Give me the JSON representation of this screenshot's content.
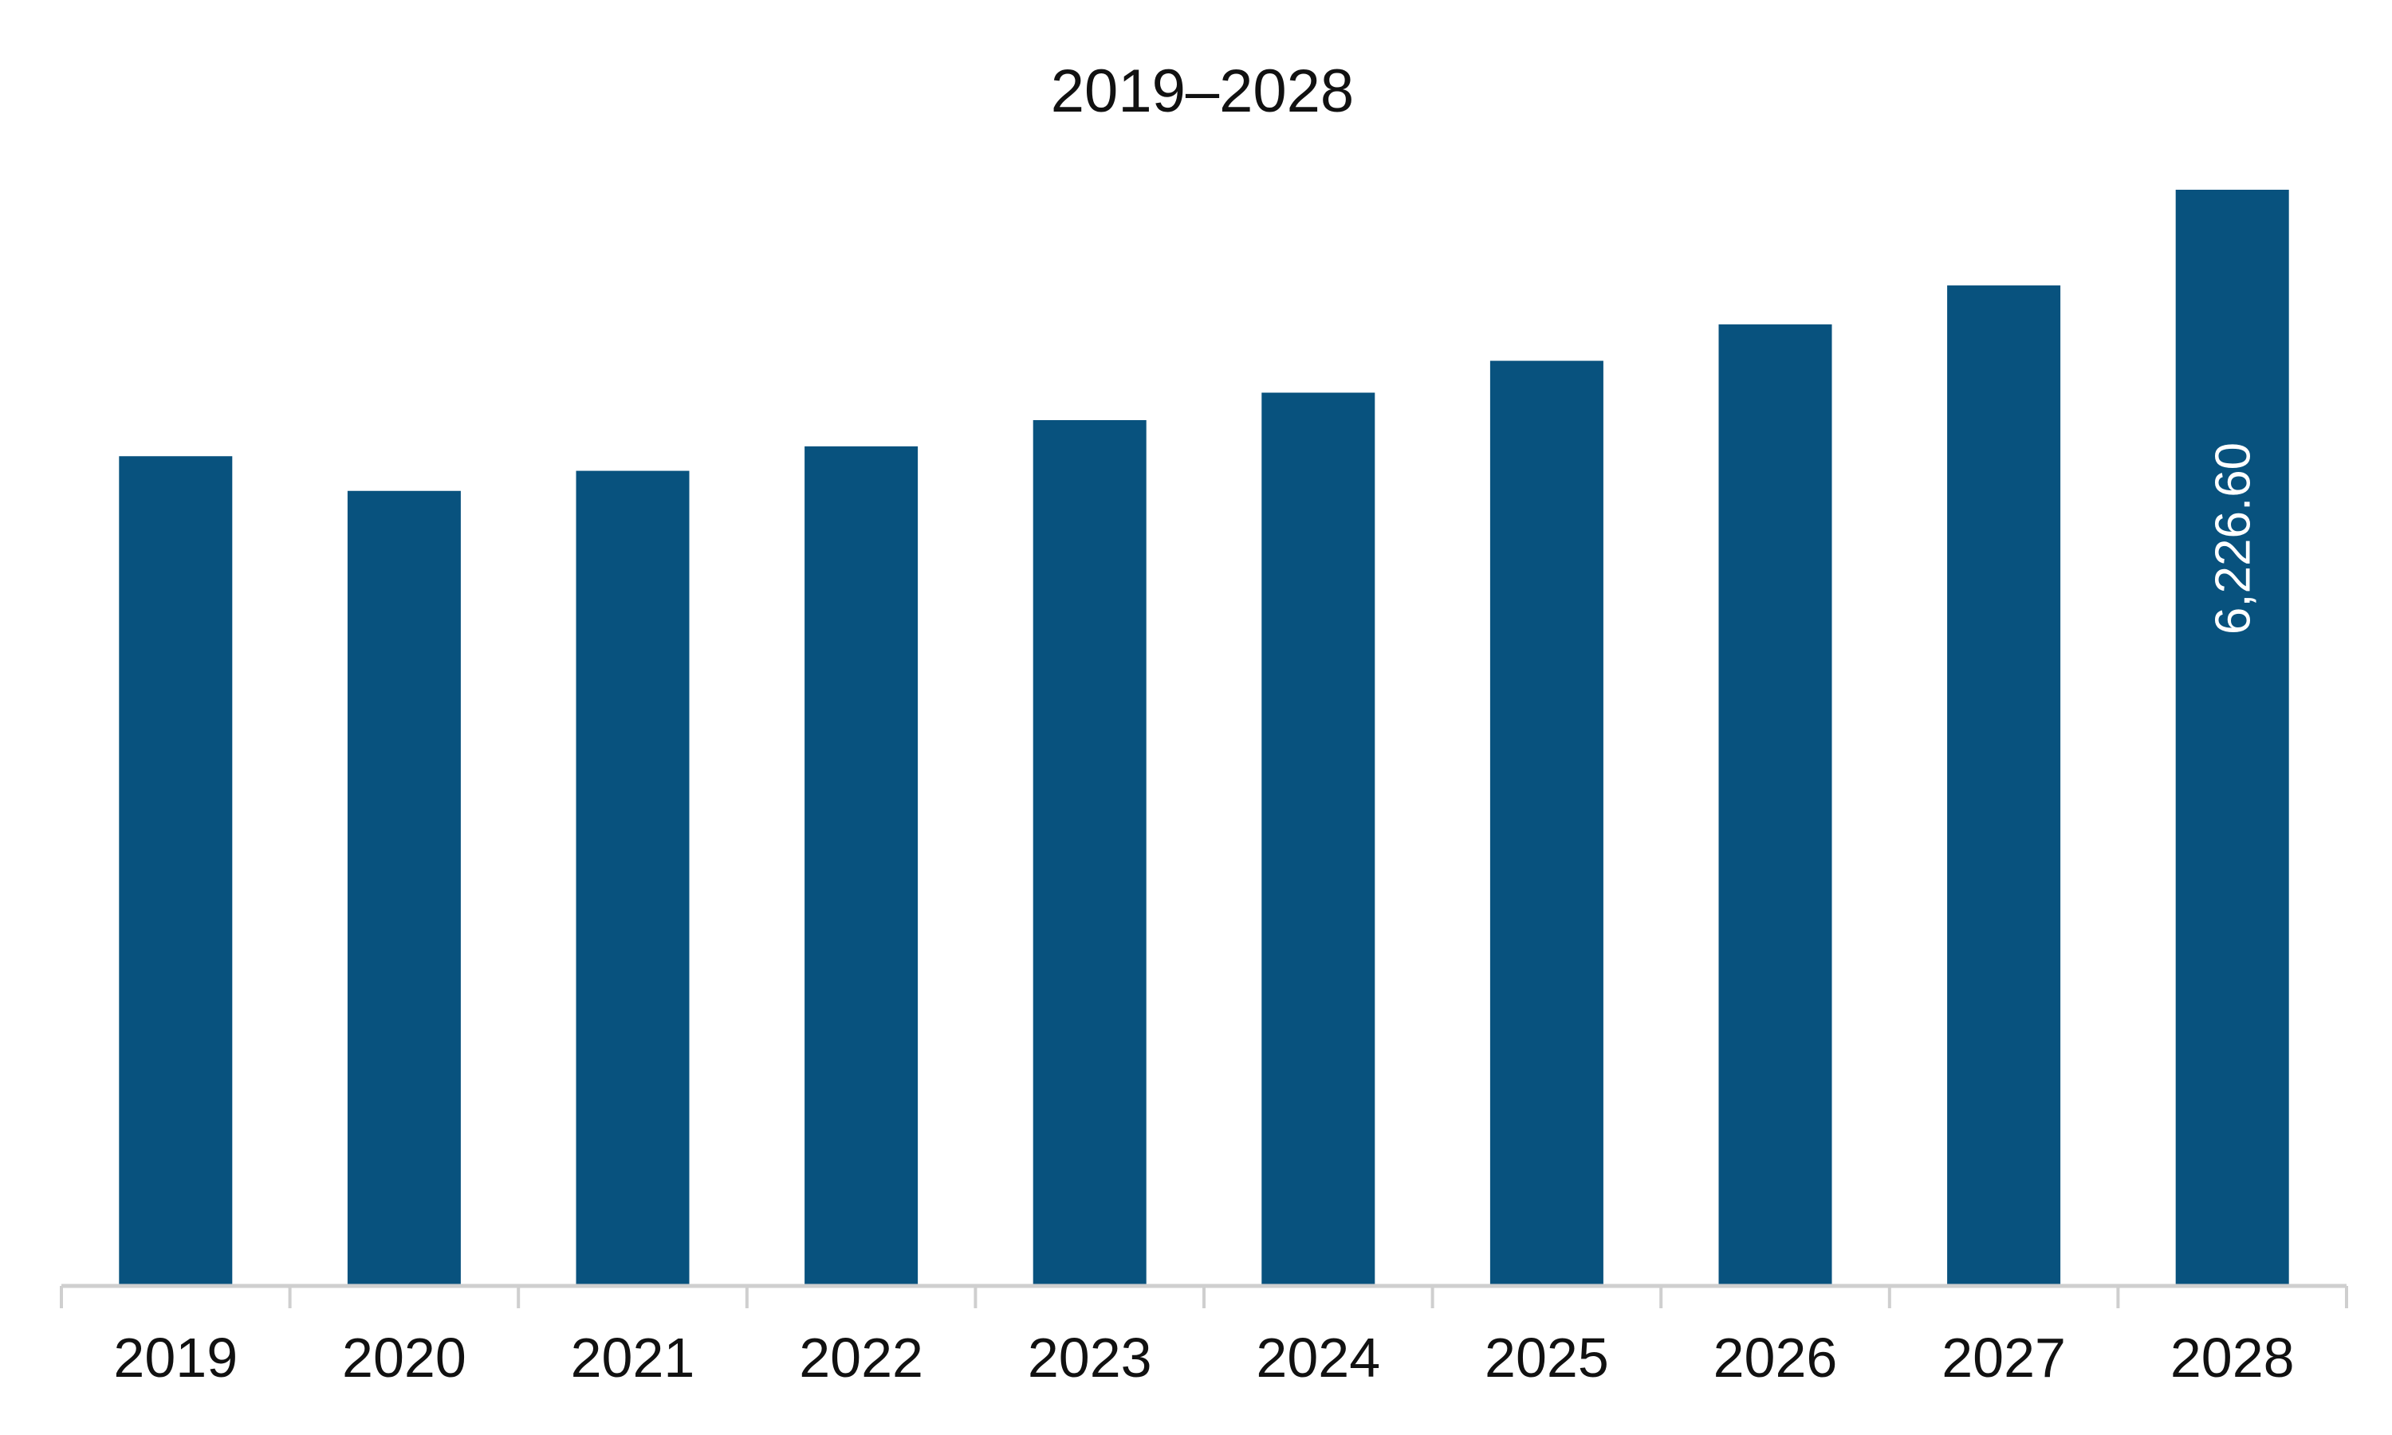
{
  "chart_data": {
    "type": "bar",
    "title": "2019–2028",
    "categories": [
      "2019",
      "2020",
      "2021",
      "2022",
      "2023",
      "2024",
      "2025",
      "2026",
      "2027",
      "2028"
    ],
    "values": [
      4713,
      4516,
      4630,
      4769,
      4918,
      5074,
      5255,
      5462,
      5683,
      6226.6
    ],
    "data_labels": [
      "",
      "",
      "",
      "",
      "",
      "",
      "",
      "",
      "",
      "6,226.60"
    ],
    "xlabel": "",
    "ylabel": "",
    "ylim": [
      0,
      6226.6
    ],
    "grid": false,
    "legend": "none",
    "bar_color": "#08527E",
    "axis_color": "#CFCFCF"
  }
}
